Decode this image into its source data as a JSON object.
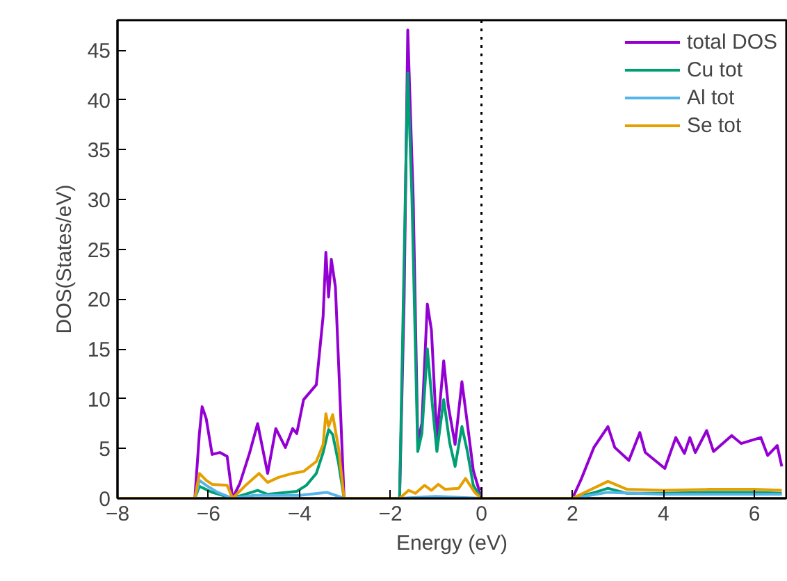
{
  "chart_data": {
    "type": "line",
    "xlabel": "Energy (eV)",
    "ylabel": "DOS(States/eV)",
    "xlim": [
      -8,
      6.7
    ],
    "ylim": [
      0,
      48
    ],
    "xticks": [
      -8,
      -6,
      -4,
      -2,
      0,
      2,
      4,
      6
    ],
    "yticks": [
      0,
      5,
      10,
      15,
      20,
      25,
      30,
      35,
      40,
      45
    ],
    "grid": false,
    "legend": "top right",
    "line_style": "solid",
    "ref_lines": [
      {
        "axis": "x",
        "value": 0,
        "color": "#000000",
        "line_style": "dotted"
      }
    ],
    "series": [
      {
        "name": "total DOS",
        "color": "#9400d3",
        "x": [
          -8,
          -6.3,
          -6.2,
          -6.14,
          -6.05,
          -5.92,
          -5.75,
          -5.59,
          -5.47,
          -5.31,
          -5.1,
          -4.92,
          -4.7,
          -4.52,
          -4.42,
          -4.31,
          -4.15,
          -4.06,
          -3.91,
          -3.63,
          -3.48,
          -3.42,
          -3.36,
          -3.3,
          -3.21,
          -3.14,
          -3.02,
          -1.8,
          -1.7,
          -1.62,
          -1.5,
          -1.4,
          -1.31,
          -1.19,
          -1.1,
          -0.98,
          -0.83,
          -0.73,
          -0.58,
          -0.43,
          -0.31,
          -0.18,
          0,
          2.0,
          2.2,
          2.47,
          2.78,
          2.93,
          3.24,
          3.48,
          3.6,
          4.03,
          4.27,
          4.46,
          4.58,
          4.7,
          4.95,
          5.1,
          5.5,
          5.71,
          5.92,
          6.14,
          6.29,
          6.5,
          6.6
        ],
        "values": [
          0,
          0,
          6.5,
          9.2,
          8,
          4.4,
          4.6,
          4.2,
          0,
          1.5,
          4.5,
          7.5,
          2.5,
          7.0,
          6.1,
          5.1,
          7.0,
          6.5,
          9.9,
          11.4,
          18.3,
          24.7,
          20.2,
          24.0,
          21.2,
          13.5,
          0,
          0,
          20,
          47.0,
          30.0,
          5.6,
          7.5,
          19.5,
          16.9,
          6.1,
          13.8,
          9.3,
          5.4,
          11.7,
          7.5,
          2.8,
          0,
          0,
          2,
          5.1,
          7.2,
          5.1,
          3.8,
          6.6,
          4.6,
          3.0,
          6.1,
          4.5,
          6.1,
          4.6,
          6.8,
          4.7,
          6.3,
          5.5,
          5.8,
          6.1,
          4.3,
          5.3,
          3.2
        ]
      },
      {
        "name": "Cu tot",
        "color": "#009e73",
        "x": [
          -8,
          -6.3,
          -6.2,
          -5.92,
          -5.47,
          -4.92,
          -4.7,
          -4.06,
          -3.85,
          -3.63,
          -3.48,
          -3.36,
          -3.27,
          -3.14,
          -3.02,
          -1.8,
          -1.65,
          -1.62,
          -1.53,
          -1.4,
          -1.31,
          -1.19,
          -1.07,
          -0.98,
          -0.83,
          -0.7,
          -0.58,
          -0.43,
          -0.31,
          -0.18,
          0,
          2.0,
          2.5,
          2.78,
          3.2,
          4,
          5,
          6,
          6.6
        ],
        "values": [
          0,
          0,
          1.2,
          0.6,
          0,
          0.8,
          0.4,
          0.7,
          1.3,
          2.5,
          4.6,
          6.9,
          6.4,
          3.5,
          0,
          0,
          36.1,
          42.7,
          30.5,
          4.7,
          6.5,
          15.0,
          8.9,
          4.7,
          9.9,
          5.6,
          3.2,
          7.2,
          4.7,
          1.3,
          0,
          0,
          0.6,
          1.0,
          0.5,
          0.5,
          0.6,
          0.6,
          0.5
        ]
      },
      {
        "name": "Al tot",
        "color": "#56b4e9",
        "x": [
          -8,
          -6.3,
          -6.2,
          -6.05,
          -5.8,
          -5.47,
          -5,
          -4,
          -3.4,
          -3.02,
          -1.8,
          -1.0,
          0,
          2.0,
          2.78,
          4,
          5,
          6.6
        ],
        "values": [
          0,
          0,
          1.8,
          1.3,
          0.6,
          0,
          0.3,
          0.3,
          0.6,
          0,
          0,
          0.2,
          0,
          0,
          0.6,
          0.4,
          0.4,
          0.4
        ]
      },
      {
        "name": "Se tot",
        "color": "#e69f00",
        "x": [
          -8,
          -6.3,
          -6.2,
          -6.05,
          -5.92,
          -5.59,
          -5.47,
          -5.16,
          -4.89,
          -4.7,
          -4.46,
          -4.15,
          -3.91,
          -3.63,
          -3.48,
          -3.42,
          -3.36,
          -3.27,
          -3.14,
          -3.02,
          -1.8,
          -1.6,
          -1.45,
          -1.25,
          -1.1,
          -0.95,
          -0.8,
          -0.5,
          -0.35,
          -0.15,
          0,
          2.0,
          2.78,
          3.2,
          4,
          5,
          6,
          6.6
        ],
        "values": [
          0,
          0,
          2.5,
          1.8,
          1.4,
          1.3,
          0,
          1.4,
          2.5,
          1.6,
          2.1,
          2.5,
          2.7,
          3.7,
          5.4,
          8.5,
          7.2,
          8.4,
          5.0,
          0,
          0,
          0.8,
          0.5,
          1.3,
          0.8,
          1.4,
          0.9,
          1.0,
          2.0,
          0.6,
          0,
          0,
          1.7,
          0.9,
          0.8,
          0.9,
          0.9,
          0.8
        ]
      }
    ]
  }
}
